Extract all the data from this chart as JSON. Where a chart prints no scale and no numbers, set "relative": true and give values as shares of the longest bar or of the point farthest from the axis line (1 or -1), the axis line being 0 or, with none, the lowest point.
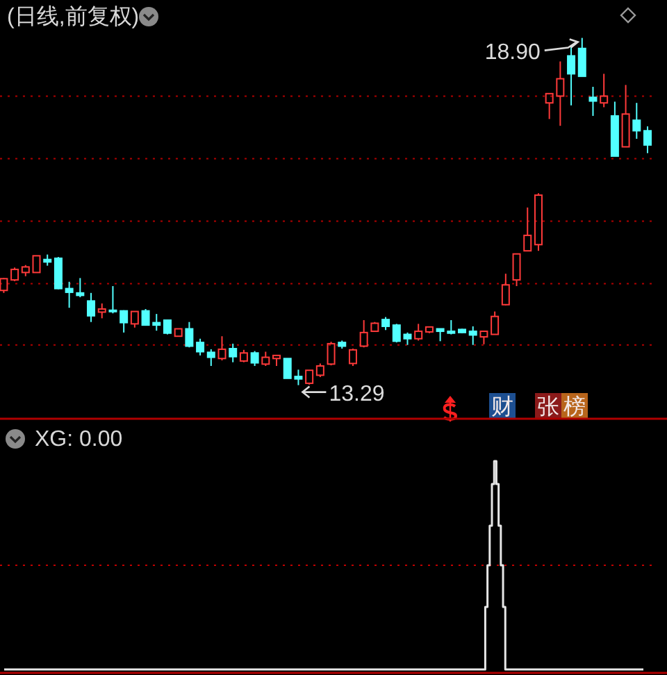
{
  "chart_data": [
    {
      "type": "candlestick",
      "title": "(日线,前复权)",
      "grid": true,
      "categories": [
        null,
        null,
        null,
        null,
        null,
        null,
        null,
        null,
        null,
        null,
        null,
        null,
        null,
        null,
        null,
        null,
        null,
        null,
        null,
        null,
        null,
        null,
        null,
        null,
        null,
        null,
        null,
        null,
        null,
        null,
        null,
        null,
        null,
        null,
        null,
        null,
        null,
        null,
        null,
        null,
        null,
        null,
        null,
        null,
        null,
        null,
        null,
        null,
        null,
        null,
        null,
        null,
        null,
        null,
        null,
        null,
        null,
        null,
        null,
        null
      ],
      "ohlc": [
        [
          14.82,
          15.02,
          14.78,
          15.01
        ],
        [
          14.99,
          15.19,
          14.97,
          15.16
        ],
        [
          15.11,
          15.23,
          15.05,
          15.2
        ],
        [
          15.11,
          15.38,
          15.11,
          15.38
        ],
        [
          15.32,
          15.4,
          15.22,
          15.28
        ],
        [
          15.34,
          15.36,
          14.84,
          14.85
        ],
        [
          14.85,
          14.96,
          14.54,
          14.79
        ],
        [
          14.78,
          15.02,
          14.71,
          14.74
        ],
        [
          14.65,
          14.78,
          14.31,
          14.41
        ],
        [
          14.47,
          14.61,
          14.37,
          14.52
        ],
        [
          14.5,
          14.89,
          14.45,
          14.48
        ],
        [
          14.49,
          14.5,
          14.14,
          14.3
        ],
        [
          14.28,
          14.48,
          14.22,
          14.48
        ],
        [
          14.49,
          14.52,
          14.25,
          14.26
        ],
        [
          14.3,
          14.44,
          14.17,
          14.26
        ],
        [
          14.34,
          14.35,
          14.11,
          14.13
        ],
        [
          14.08,
          14.2,
          14.08,
          14.2
        ],
        [
          14.2,
          14.31,
          13.9,
          13.92
        ],
        [
          13.98,
          14.04,
          13.77,
          13.83
        ],
        [
          13.82,
          13.87,
          13.6,
          13.74
        ],
        [
          13.72,
          14.08,
          13.69,
          13.87
        ],
        [
          13.88,
          13.96,
          13.66,
          13.75
        ],
        [
          13.68,
          13.86,
          13.66,
          13.81
        ],
        [
          13.81,
          13.84,
          13.6,
          13.65
        ],
        [
          13.63,
          13.83,
          13.6,
          13.74
        ],
        [
          13.72,
          13.77,
          13.6,
          13.77
        ],
        [
          13.72,
          13.72,
          13.4,
          13.4
        ],
        [
          13.43,
          13.54,
          13.29,
          13.39
        ],
        [
          13.32,
          13.53,
          13.3,
          13.53
        ],
        [
          13.45,
          13.64,
          13.42,
          13.6
        ],
        [
          13.63,
          13.99,
          13.61,
          13.96
        ],
        [
          13.98,
          14.01,
          13.88,
          13.92
        ],
        [
          13.64,
          13.88,
          13.6,
          13.86
        ],
        [
          13.92,
          14.34,
          13.9,
          14.14
        ],
        [
          14.16,
          14.31,
          14.15,
          14.29
        ],
        [
          14.35,
          14.39,
          14.18,
          14.24
        ],
        [
          14.26,
          14.28,
          13.98,
          14.0
        ],
        [
          14.11,
          14.14,
          13.94,
          14.04
        ],
        [
          14.04,
          14.28,
          14.01,
          14.16
        ],
        [
          14.15,
          14.23,
          14.13,
          14.23
        ],
        [
          14.2,
          14.2,
          14.0,
          14.16
        ],
        [
          14.16,
          14.34,
          14.11,
          14.13
        ],
        [
          14.19,
          14.2,
          14.13,
          14.14
        ],
        [
          14.16,
          14.24,
          13.94,
          14.1
        ],
        [
          14.07,
          14.16,
          13.95,
          14.16
        ],
        [
          14.11,
          14.48,
          14.11,
          14.4
        ],
        [
          14.59,
          15.09,
          14.58,
          14.91
        ],
        [
          14.99,
          15.41,
          14.89,
          15.41
        ],
        [
          15.46,
          16.16,
          15.46,
          15.71
        ],
        [
          15.56,
          16.39,
          15.46,
          16.36
        ],
        [
          17.85,
          18.0,
          17.59,
          18.0
        ],
        [
          17.96,
          18.52,
          17.48,
          18.24
        ],
        [
          18.61,
          18.77,
          17.81,
          18.32
        ],
        [
          18.73,
          18.9,
          18.28,
          18.28
        ],
        [
          17.94,
          18.11,
          17.64,
          17.88
        ],
        [
          17.85,
          18.32,
          17.78,
          17.96
        ],
        [
          17.64,
          17.87,
          16.99,
          16.99
        ],
        [
          17.14,
          18.14,
          17.14,
          17.67
        ],
        [
          17.57,
          17.85,
          17.27,
          17.4
        ],
        [
          17.4,
          17.47,
          17.04,
          17.17
        ]
      ],
      "colors": [
        "#ff3a3a",
        "#ff3a3a",
        "#ff3a3a",
        "#ff3a3a",
        "#52ffff",
        "#52ffff",
        "#52ffff",
        "#52ffff",
        "#52ffff",
        "#ff3a3a",
        "#52ffff",
        "#52ffff",
        "#ff3a3a",
        "#52ffff",
        "#52ffff",
        "#52ffff",
        "#ff3a3a",
        "#52ffff",
        "#52ffff",
        "#52ffff",
        "#ff3a3a",
        "#52ffff",
        "#ff3a3a",
        "#52ffff",
        "#ff3a3a",
        "#ff3a3a",
        "#52ffff",
        "#52ffff",
        "#ff3a3a",
        "#ff3a3a",
        "#ff3a3a",
        "#52ffff",
        "#ff3a3a",
        "#ff3a3a",
        "#ff3a3a",
        "#52ffff",
        "#52ffff",
        "#52ffff",
        "#ff3a3a",
        "#ff3a3a",
        "#52ffff",
        "#52ffff",
        "#52ffff",
        "#52ffff",
        "#ff3a3a",
        "#ff3a3a",
        "#ff3a3a",
        "#ff3a3a",
        "#ff3a3a",
        "#ff3a3a",
        "#ff3a3a",
        "#ff3a3a",
        "#52ffff",
        "#52ffff",
        "#52ffff",
        "#ff3a3a",
        "#52ffff",
        "#ff3a3a",
        "#52ffff",
        "#52ffff"
      ],
      "yticks": [
        {
          "value": 13.94,
          "label": null
        },
        {
          "value": 14.93,
          "label": null
        },
        {
          "value": 15.94,
          "label": null
        },
        {
          "value": 16.95,
          "label": null
        },
        {
          "value": 17.96,
          "label": null
        }
      ],
      "annotations": [
        "18.90",
        "13.29",
        "财",
        "张榜"
      ]
    },
    {
      "type": "step",
      "title": "XG: 0.00",
      "relative": true,
      "color": "#e6e6e6",
      "ref_lines": [
        {
          "axis": "y",
          "value": 0.5,
          "color": "#c00000",
          "line_style": "dotted"
        }
      ],
      "categories": [
        null,
        null,
        null,
        null,
        null,
        null,
        null,
        null,
        null,
        null,
        null,
        null,
        null,
        null,
        null,
        null,
        null,
        null,
        null,
        null,
        null,
        null,
        null,
        null,
        null,
        null,
        null,
        null,
        null,
        null,
        null,
        null,
        null,
        null,
        null,
        null,
        null,
        null,
        null,
        null,
        null,
        null,
        null,
        null,
        null,
        null,
        null,
        null,
        null,
        null,
        null,
        null,
        null,
        null,
        null,
        null,
        null,
        null,
        null,
        null,
        null,
        null,
        null,
        null,
        null,
        null,
        null,
        null,
        null,
        null,
        null,
        null,
        null,
        null,
        null,
        null,
        null,
        null,
        null,
        null,
        null,
        null,
        null,
        null,
        null,
        null,
        null,
        null,
        null,
        null,
        null,
        null,
        null,
        null,
        null,
        null,
        null,
        null,
        null,
        null,
        null,
        null,
        null,
        null,
        null,
        null,
        null,
        null,
        null,
        null,
        null,
        null,
        null,
        null,
        null,
        null,
        null,
        null,
        null,
        null,
        null,
        null,
        null,
        null,
        null,
        null,
        null,
        null,
        null,
        null,
        null,
        null,
        null,
        null,
        null,
        null,
        null,
        null,
        null,
        null,
        null,
        null,
        null,
        null,
        null,
        null,
        null,
        null,
        null,
        null,
        null,
        null,
        null,
        null,
        null,
        null,
        null,
        null,
        null,
        null,
        null,
        null,
        null,
        null,
        null,
        null,
        null,
        null,
        null,
        null,
        null,
        null,
        null,
        null,
        null,
        null,
        null,
        null,
        null,
        null,
        null,
        null,
        null,
        null,
        null,
        null,
        null,
        null,
        null,
        null,
        null,
        null,
        null,
        null,
        null,
        null,
        null,
        null,
        null,
        null,
        null,
        null,
        null,
        null,
        null,
        null,
        null,
        null,
        null,
        null,
        null,
        null,
        null,
        null,
        null,
        null,
        null,
        null,
        null,
        null,
        null,
        null,
        null,
        null,
        null,
        null,
        null,
        null,
        null,
        null,
        null,
        null,
        null,
        null,
        null,
        null,
        null,
        null,
        null,
        null,
        null,
        null,
        null,
        null,
        null,
        null,
        null,
        null,
        null,
        null,
        null,
        null,
        null,
        null,
        null,
        null,
        null,
        null,
        null,
        null,
        null,
        null,
        null,
        null,
        null,
        null,
        null,
        null,
        null,
        null,
        null,
        null,
        null,
        null,
        null,
        null,
        null,
        null,
        null,
        null,
        null,
        null,
        null,
        null,
        null,
        null,
        null,
        null
      ],
      "values": [
        0,
        0,
        0,
        0,
        0,
        0,
        0,
        0,
        0,
        0,
        0,
        0,
        0,
        0,
        0,
        0,
        0,
        0,
        0,
        0,
        0,
        0,
        0,
        0,
        0,
        0,
        0,
        0,
        0,
        0,
        0,
        0,
        0,
        0,
        0,
        0,
        0,
        0,
        0,
        0,
        0,
        0,
        0,
        0,
        0,
        0,
        0,
        0,
        0,
        0,
        0,
        0,
        0,
        0,
        0,
        0,
        0,
        0,
        0,
        0,
        0,
        0,
        0,
        0,
        0,
        0,
        0,
        0,
        0,
        0,
        0,
        0,
        0,
        0,
        0,
        0,
        0,
        0,
        0,
        0,
        0,
        0,
        0,
        0,
        0,
        0,
        0,
        0,
        0,
        0,
        0,
        0,
        0,
        0,
        0,
        0,
        0,
        0,
        0,
        0,
        0,
        0,
        0,
        0,
        0,
        0,
        0,
        0,
        0,
        0,
        0,
        0,
        0,
        0,
        0,
        0,
        0,
        0,
        0,
        0,
        0,
        0,
        0,
        0,
        0,
        0,
        0,
        0,
        0,
        0,
        0,
        0,
        0,
        0,
        0,
        0,
        0,
        0,
        0,
        0,
        0,
        0,
        0,
        0,
        0,
        0,
        0,
        0,
        0,
        0,
        0,
        0,
        0,
        0,
        0,
        0,
        0,
        0,
        0,
        0,
        0,
        0,
        0,
        0,
        0,
        0,
        0,
        0,
        0,
        0,
        0,
        0,
        0,
        0,
        0,
        0,
        0,
        0,
        0,
        0,
        0,
        0,
        0,
        0,
        0,
        0,
        0,
        0,
        0,
        0,
        0,
        0,
        0,
        0,
        0,
        0,
        0,
        0,
        0,
        0,
        0,
        0,
        0,
        0,
        0,
        0,
        0,
        0,
        0,
        0,
        0,
        0,
        0,
        0,
        0,
        0,
        0.3,
        0.5,
        0.69,
        0.89,
        1,
        0.89,
        0.69,
        0.5,
        0.3,
        0,
        0,
        0,
        0,
        0,
        0,
        0,
        0,
        0,
        0,
        0,
        0,
        0,
        0,
        0,
        0,
        0,
        0,
        0,
        0,
        0,
        0,
        0,
        0,
        0,
        0,
        0,
        0,
        0,
        0,
        0,
        0,
        0,
        0,
        0,
        0,
        0,
        0,
        0,
        0,
        0,
        0,
        0,
        0,
        0,
        0,
        0,
        0,
        0,
        0,
        0,
        0,
        0,
        0,
        0,
        0,
        0,
        0,
        0,
        0,
        0,
        0,
        0
      ]
    }
  ]
}
